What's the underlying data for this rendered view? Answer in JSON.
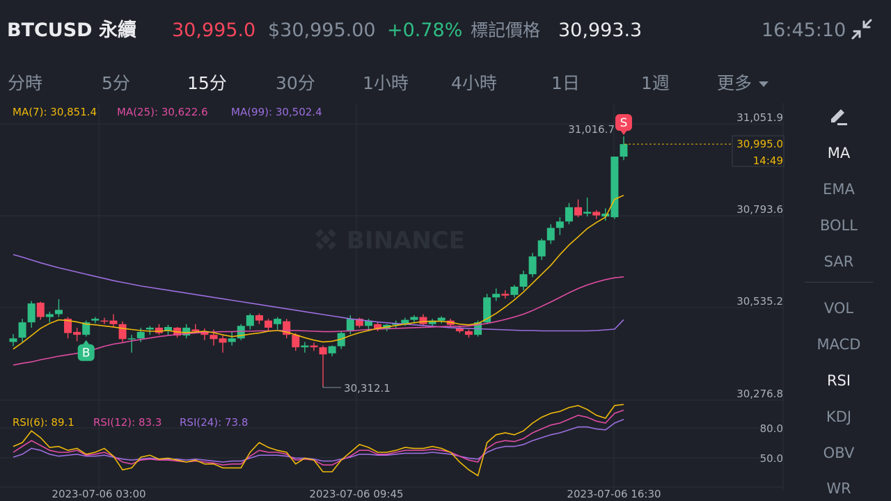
{
  "header": {
    "symbol": "BTCUSD 永續",
    "last_price": "30,995.0",
    "index_price": "$30,995.00",
    "change": "+0.78%",
    "mark_label": "標記價格",
    "mark_price": "30,993.3",
    "time": "16:45:10",
    "shrink_icon": "collapse-arrows-icon"
  },
  "intervals": {
    "tabs": [
      "分時",
      "5分",
      "15分",
      "30分",
      "1小時",
      "4小時",
      "1日",
      "1週",
      "更多"
    ],
    "active": "15分"
  },
  "indicators": {
    "main": [
      "MA",
      "EMA",
      "BOLL",
      "SAR"
    ],
    "sub": [
      "VOL",
      "MACD",
      "RSI",
      "KDJ",
      "OBV",
      "WR"
    ],
    "active_main": "MA",
    "active_sub": "RSI",
    "edit_icon": "pencil-icon"
  },
  "ma_legend": {
    "ma7": "MA(7): 30,851.4",
    "ma25": "MA(25): 30,622.6",
    "ma99": "MA(99): 30,502.4"
  },
  "rsi_legend": {
    "rsi6": "RSI(6): 89.1",
    "rsi12": "RSI(12): 83.3",
    "rsi24": "RSI(24): 73.8"
  },
  "price_axis": [
    "31,051.9",
    "30,793.6",
    "30,535.2",
    "30,276.8"
  ],
  "current_price_tag": {
    "price": "30,995.0",
    "countdown": "14:49"
  },
  "rsi_axis": [
    "80.0",
    "50.0"
  ],
  "time_axis": [
    "2023-07-06 03:00",
    "2023-07-06 09:45",
    "2023-07-06 16:30"
  ],
  "high_marker": "31,016.7",
  "low_marker": "30,312.1",
  "buy_marker": "B",
  "sell_marker": "S",
  "watermark": "BINANCE",
  "colors": {
    "up": "#2ebd85",
    "down": "#f6465d",
    "ma7": "#f0b90b",
    "ma25": "#e14ca4",
    "ma99": "#9c6ee0",
    "bg": "#1e2129"
  },
  "chart_data": {
    "type": "candlestick",
    "interval": "15m",
    "price_range": [
      30276.8,
      31051.9
    ],
    "rsi_range": [
      0,
      100
    ],
    "candles": [
      {
        "o": 30440,
        "h": 30462,
        "l": 30428,
        "c": 30450
      },
      {
        "o": 30452,
        "h": 30505,
        "l": 30440,
        "c": 30495
      },
      {
        "o": 30495,
        "h": 30555,
        "l": 30480,
        "c": 30548
      },
      {
        "o": 30550,
        "h": 30553,
        "l": 30502,
        "c": 30510
      },
      {
        "o": 30510,
        "h": 30525,
        "l": 30495,
        "c": 30518
      },
      {
        "o": 30518,
        "h": 30560,
        "l": 30510,
        "c": 30530
      },
      {
        "o": 30505,
        "h": 30510,
        "l": 30450,
        "c": 30465
      },
      {
        "o": 30468,
        "h": 30480,
        "l": 30442,
        "c": 30460
      },
      {
        "o": 30460,
        "h": 30500,
        "l": 30455,
        "c": 30495
      },
      {
        "o": 30500,
        "h": 30510,
        "l": 30492,
        "c": 30505
      },
      {
        "o": 30500,
        "h": 30508,
        "l": 30490,
        "c": 30498
      },
      {
        "o": 30500,
        "h": 30518,
        "l": 30480,
        "c": 30490
      },
      {
        "o": 30490,
        "h": 30498,
        "l": 30440,
        "c": 30448
      },
      {
        "o": 30448,
        "h": 30460,
        "l": 30410,
        "c": 30450
      },
      {
        "o": 30450,
        "h": 30480,
        "l": 30440,
        "c": 30468
      },
      {
        "o": 30475,
        "h": 30485,
        "l": 30460,
        "c": 30480
      },
      {
        "o": 30480,
        "h": 30490,
        "l": 30460,
        "c": 30465
      },
      {
        "o": 30470,
        "h": 30488,
        "l": 30460,
        "c": 30482
      },
      {
        "o": 30480,
        "h": 30482,
        "l": 30452,
        "c": 30458
      },
      {
        "o": 30458,
        "h": 30490,
        "l": 30450,
        "c": 30480
      },
      {
        "o": 30475,
        "h": 30490,
        "l": 30465,
        "c": 30470
      },
      {
        "o": 30470,
        "h": 30478,
        "l": 30445,
        "c": 30460
      },
      {
        "o": 30460,
        "h": 30475,
        "l": 30430,
        "c": 30448
      },
      {
        "o": 30450,
        "h": 30458,
        "l": 30410,
        "c": 30438
      },
      {
        "o": 30440,
        "h": 30468,
        "l": 30430,
        "c": 30450
      },
      {
        "o": 30450,
        "h": 30490,
        "l": 30445,
        "c": 30485
      },
      {
        "o": 30485,
        "h": 30520,
        "l": 30475,
        "c": 30515
      },
      {
        "o": 30515,
        "h": 30520,
        "l": 30490,
        "c": 30500
      },
      {
        "o": 30500,
        "h": 30505,
        "l": 30470,
        "c": 30480
      },
      {
        "o": 30490,
        "h": 30510,
        "l": 30475,
        "c": 30505
      },
      {
        "o": 30498,
        "h": 30505,
        "l": 30450,
        "c": 30460
      },
      {
        "o": 30460,
        "h": 30465,
        "l": 30415,
        "c": 30425
      },
      {
        "o": 30425,
        "h": 30440,
        "l": 30410,
        "c": 30430
      },
      {
        "o": 30430,
        "h": 30438,
        "l": 30415,
        "c": 30425
      },
      {
        "o": 30425,
        "h": 30430,
        "l": 30312.1,
        "c": 30405
      },
      {
        "o": 30408,
        "h": 30430,
        "l": 30400,
        "c": 30428
      },
      {
        "o": 30428,
        "h": 30470,
        "l": 30420,
        "c": 30465
      },
      {
        "o": 30470,
        "h": 30515,
        "l": 30462,
        "c": 30505
      },
      {
        "o": 30505,
        "h": 30508,
        "l": 30480,
        "c": 30485
      },
      {
        "o": 30485,
        "h": 30505,
        "l": 30470,
        "c": 30500
      },
      {
        "o": 30490,
        "h": 30495,
        "l": 30470,
        "c": 30478
      },
      {
        "o": 30478,
        "h": 30490,
        "l": 30470,
        "c": 30488
      },
      {
        "o": 30488,
        "h": 30500,
        "l": 30480,
        "c": 30492
      },
      {
        "o": 30492,
        "h": 30508,
        "l": 30485,
        "c": 30502
      },
      {
        "o": 30502,
        "h": 30515,
        "l": 30492,
        "c": 30510
      },
      {
        "o": 30510,
        "h": 30518,
        "l": 30485,
        "c": 30490
      },
      {
        "o": 30490,
        "h": 30505,
        "l": 30484,
        "c": 30500
      },
      {
        "o": 30500,
        "h": 30512,
        "l": 30492,
        "c": 30508
      },
      {
        "o": 30500,
        "h": 30505,
        "l": 30484,
        "c": 30488
      },
      {
        "o": 30480,
        "h": 30486,
        "l": 30465,
        "c": 30470
      },
      {
        "o": 30470,
        "h": 30475,
        "l": 30452,
        "c": 30460
      },
      {
        "o": 30460,
        "h": 30500,
        "l": 30455,
        "c": 30495
      },
      {
        "o": 30495,
        "h": 30575,
        "l": 30490,
        "c": 30565
      },
      {
        "o": 30565,
        "h": 30590,
        "l": 30555,
        "c": 30575
      },
      {
        "o": 30575,
        "h": 30585,
        "l": 30562,
        "c": 30570
      },
      {
        "o": 30572,
        "h": 30600,
        "l": 30565,
        "c": 30595
      },
      {
        "o": 30595,
        "h": 30640,
        "l": 30585,
        "c": 30630
      },
      {
        "o": 30630,
        "h": 30690,
        "l": 30622,
        "c": 30680
      },
      {
        "o": 30680,
        "h": 30730,
        "l": 30670,
        "c": 30725
      },
      {
        "o": 30725,
        "h": 30770,
        "l": 30715,
        "c": 30760
      },
      {
        "o": 30760,
        "h": 30790,
        "l": 30740,
        "c": 30778
      },
      {
        "o": 30778,
        "h": 30830,
        "l": 30770,
        "c": 30818
      },
      {
        "o": 30818,
        "h": 30840,
        "l": 30790,
        "c": 30795
      },
      {
        "o": 30800,
        "h": 30845,
        "l": 30792,
        "c": 30805
      },
      {
        "o": 30805,
        "h": 30810,
        "l": 30785,
        "c": 30795
      },
      {
        "o": 30792,
        "h": 30815,
        "l": 30780,
        "c": 30800
      },
      {
        "o": 30790,
        "h": 30960,
        "l": 30785,
        "c": 30960
      },
      {
        "o": 30960,
        "h": 31016.7,
        "l": 30950,
        "c": 30995
      }
    ],
    "ma7": [
      30420,
      30438,
      30458,
      30478,
      30492,
      30502,
      30500,
      30496,
      30490,
      30488,
      30485,
      30482,
      30478,
      30475,
      30472,
      30470,
      30470,
      30472,
      30468,
      30466,
      30468,
      30470,
      30466,
      30460,
      30455,
      30458,
      30462,
      30465,
      30470,
      30472,
      30468,
      30460,
      30452,
      30445,
      30440,
      30442,
      30448,
      30458,
      30466,
      30472,
      30478,
      30482,
      30486,
      30490,
      30494,
      30497,
      30498,
      30498,
      30495,
      30490,
      30488,
      30492,
      30505,
      30520,
      30538,
      30558,
      30580,
      30605,
      30630,
      30655,
      30685,
      30712,
      30735,
      30758,
      30775,
      30790,
      30840,
      30851.4
    ],
    "ma25": [
      30375,
      30380,
      30384,
      30390,
      30395,
      30400,
      30404,
      30408,
      30414,
      30420,
      30428,
      30434,
      30438,
      30443,
      30447,
      30451,
      30455,
      30458,
      30461,
      30463,
      30465,
      30467,
      30468,
      30469,
      30469,
      30470,
      30470,
      30471,
      30471,
      30472,
      30472,
      30472,
      30471,
      30470,
      30469,
      30469,
      30470,
      30471,
      30473,
      30475,
      30476,
      30477,
      30478,
      30479,
      30480,
      30481,
      30482,
      30483,
      30484,
      30484,
      30485,
      30488,
      30492,
      30497,
      30503,
      30510,
      30518,
      30528,
      30540,
      30552,
      30565,
      30578,
      30590,
      30600,
      30608,
      30615,
      30620,
      30622.6
    ],
    "ma99": [
      30685,
      30678,
      30670,
      30662,
      30655,
      30648,
      30642,
      30636,
      30630,
      30624,
      30618,
      30612,
      30607,
      30602,
      30597,
      30593,
      30589,
      30585,
      30581,
      30577,
      30573,
      30569,
      30565,
      30561,
      30557,
      30553,
      30549,
      30545,
      30541,
      30537,
      30533,
      30529,
      30525,
      30521,
      30517,
      30513,
      30509,
      30505,
      30502,
      30499,
      30496,
      30494,
      30492,
      30490,
      30488,
      30486,
      30484,
      30482,
      30480,
      30479,
      30478,
      30477,
      30476,
      30475,
      30474,
      30473,
      30472,
      30472,
      30471,
      30471,
      30471,
      30471,
      30471,
      30471,
      30472,
      30474,
      30476,
      30502.4
    ],
    "rsi6": [
      46,
      50,
      62,
      55,
      45,
      46,
      42,
      44,
      38,
      40,
      44,
      36,
      22,
      24,
      35,
      37,
      33,
      34,
      32,
      30,
      32,
      28,
      28,
      24,
      24,
      24,
      40,
      50,
      45,
      42,
      40,
      28,
      34,
      32,
      20,
      20,
      32,
      40,
      48,
      45,
      40,
      40,
      42,
      45,
      44,
      44,
      46,
      44,
      40,
      30,
      22,
      16,
      50,
      58,
      60,
      58,
      62,
      70,
      76,
      80,
      82,
      86,
      88,
      84,
      78,
      75,
      88,
      89.1
    ],
    "rsi12": [
      40,
      46,
      52,
      47,
      42,
      40,
      40,
      42,
      37,
      38,
      40,
      36,
      30,
      28,
      32,
      33,
      32,
      32,
      31,
      30,
      31,
      30,
      29,
      27,
      28,
      28,
      36,
      42,
      40,
      40,
      38,
      32,
      33,
      32,
      27,
      27,
      32,
      36,
      42,
      42,
      38,
      38,
      40,
      42,
      42,
      42,
      43,
      42,
      40,
      36,
      32,
      30,
      44,
      50,
      52,
      51,
      54,
      60,
      64,
      68,
      70,
      74,
      78,
      76,
      72,
      70,
      80,
      83.3
    ],
    "rsi24": [
      35,
      38,
      44,
      42,
      38,
      36,
      37,
      38,
      36,
      36,
      37,
      35,
      33,
      32,
      33,
      34,
      33,
      33,
      33,
      32,
      33,
      32,
      31,
      30,
      31,
      31,
      34,
      37,
      37,
      37,
      36,
      34,
      34,
      33,
      31,
      31,
      33,
      35,
      38,
      38,
      37,
      37,
      38,
      39,
      39,
      39,
      40,
      39,
      38,
      36,
      34,
      33,
      40,
      44,
      46,
      46,
      48,
      52,
      55,
      58,
      60,
      63,
      66,
      66,
      64,
      63,
      70,
      73.8
    ]
  }
}
